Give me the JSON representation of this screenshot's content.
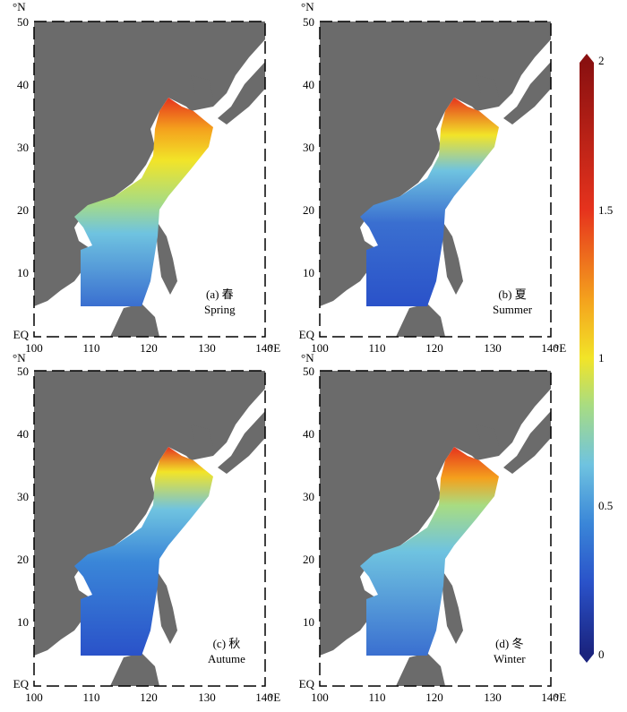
{
  "axes": {
    "lat_ticks": [
      "EQ",
      "10",
      "20",
      "30",
      "40",
      "50"
    ],
    "lon_ticks": [
      "100",
      "110",
      "120",
      "130",
      "140"
    ],
    "lat_unit": "°N",
    "lon_unit": "°E"
  },
  "panels": [
    {
      "label": "(a) 春",
      "season": "Spring"
    },
    {
      "label": "(b) 夏",
      "season": "Summer"
    },
    {
      "label": "(c) 秋",
      "season": "Autume"
    },
    {
      "label": "(d) 冬",
      "season": "Winter"
    }
  ],
  "colorbar": {
    "ticks": [
      "0",
      "0.5",
      "1",
      "1.5",
      "2"
    ],
    "colors": [
      "#1a237e",
      "#2a52c9",
      "#3a86d8",
      "#6fc3e0",
      "#a8dc82",
      "#f2e428",
      "#f4a11d",
      "#e6331d",
      "#8a1010"
    ]
  },
  "colors": {
    "land": "#6b6b6b",
    "ocean_white": "#ffffff",
    "frame": "#000000"
  }
}
